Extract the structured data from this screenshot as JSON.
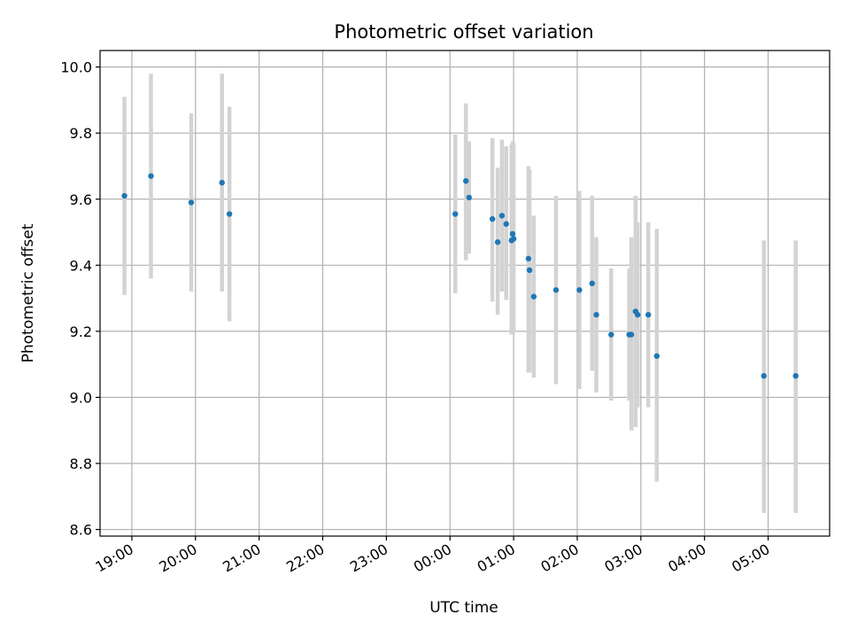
{
  "chart_data": {
    "type": "scatter",
    "title": "Photometric offset variation",
    "xlabel": "UTC time",
    "ylabel": "Photometric offset",
    "x_axis": {
      "kind": "time",
      "min": "18:30",
      "max": "05:58",
      "ticks": [
        "19:00",
        "20:00",
        "21:00",
        "22:00",
        "23:00",
        "00:00",
        "01:00",
        "02:00",
        "03:00",
        "04:00",
        "05:00"
      ],
      "tick_values": [
        "19:00",
        "20:00",
        "21:00",
        "22:00",
        "23:00",
        "00:00",
        "01:00",
        "02:00",
        "03:00",
        "04:00",
        "05:00"
      ]
    },
    "y_axis": {
      "min": 8.58,
      "max": 10.05,
      "ticks": [
        "8.6",
        "8.8",
        "9.0",
        "9.2",
        "9.4",
        "9.6",
        "9.8",
        "10.0"
      ],
      "tick_values": [
        8.6,
        8.8,
        9.0,
        9.2,
        9.4,
        9.6,
        9.8,
        10.0
      ]
    },
    "grid": true,
    "legend": "none",
    "colors": {
      "point": "#1f77b4",
      "errorbar": "#d3d3d3"
    },
    "points": [
      {
        "t": "18:53",
        "y": 9.61,
        "lo": 9.31,
        "hi": 9.91
      },
      {
        "t": "19:18",
        "y": 9.67,
        "lo": 9.36,
        "hi": 9.98
      },
      {
        "t": "19:56",
        "y": 9.59,
        "lo": 9.32,
        "hi": 9.86
      },
      {
        "t": "20:25",
        "y": 9.65,
        "lo": 9.32,
        "hi": 9.98
      },
      {
        "t": "20:32",
        "y": 9.555,
        "lo": 9.23,
        "hi": 9.88
      },
      {
        "t": "00:05",
        "y": 9.555,
        "lo": 9.315,
        "hi": 9.795
      },
      {
        "t": "00:15",
        "y": 9.655,
        "lo": 9.415,
        "hi": 9.89
      },
      {
        "t": "00:18",
        "y": 9.605,
        "lo": 9.435,
        "hi": 9.775
      },
      {
        "t": "00:40",
        "y": 9.54,
        "lo": 9.29,
        "hi": 9.785
      },
      {
        "t": "00:45",
        "y": 9.47,
        "lo": 9.25,
        "hi": 9.695
      },
      {
        "t": "00:49",
        "y": 9.55,
        "lo": 9.32,
        "hi": 9.78
      },
      {
        "t": "00:53",
        "y": 9.525,
        "lo": 9.295,
        "hi": 9.76
      },
      {
        "t": "00:58",
        "y": 9.475,
        "lo": 9.19,
        "hi": 9.765
      },
      {
        "t": "00:59",
        "y": 9.495,
        "lo": 9.215,
        "hi": 9.775
      },
      {
        "t": "01:00",
        "y": 9.48,
        "lo": 9.195,
        "hi": 9.77
      },
      {
        "t": "01:14",
        "y": 9.42,
        "lo": 9.075,
        "hi": 9.7
      },
      {
        "t": "01:15",
        "y": 9.385,
        "lo": 9.075,
        "hi": 9.69
      },
      {
        "t": "01:19",
        "y": 9.305,
        "lo": 9.06,
        "hi": 9.55
      },
      {
        "t": "01:40",
        "y": 9.325,
        "lo": 9.04,
        "hi": 9.61
      },
      {
        "t": "02:02",
        "y": 9.325,
        "lo": 9.025,
        "hi": 9.625
      },
      {
        "t": "02:14",
        "y": 9.345,
        "lo": 9.08,
        "hi": 9.61
      },
      {
        "t": "02:18",
        "y": 9.25,
        "lo": 9.015,
        "hi": 9.485
      },
      {
        "t": "02:32",
        "y": 9.19,
        "lo": 8.99,
        "hi": 9.39
      },
      {
        "t": "02:49",
        "y": 9.19,
        "lo": 8.99,
        "hi": 9.39
      },
      {
        "t": "02:51",
        "y": 9.19,
        "lo": 8.9,
        "hi": 9.485
      },
      {
        "t": "02:55",
        "y": 9.26,
        "lo": 8.91,
        "hi": 9.61
      },
      {
        "t": "02:57",
        "y": 9.25,
        "lo": 8.97,
        "hi": 9.53
      },
      {
        "t": "03:07",
        "y": 9.25,
        "lo": 8.97,
        "hi": 9.53
      },
      {
        "t": "03:15",
        "y": 9.125,
        "lo": 8.745,
        "hi": 9.51
      },
      {
        "t": "04:56",
        "y": 9.065,
        "lo": 8.65,
        "hi": 9.475
      },
      {
        "t": "05:26",
        "y": 9.065,
        "lo": 8.65,
        "hi": 9.475
      }
    ]
  }
}
